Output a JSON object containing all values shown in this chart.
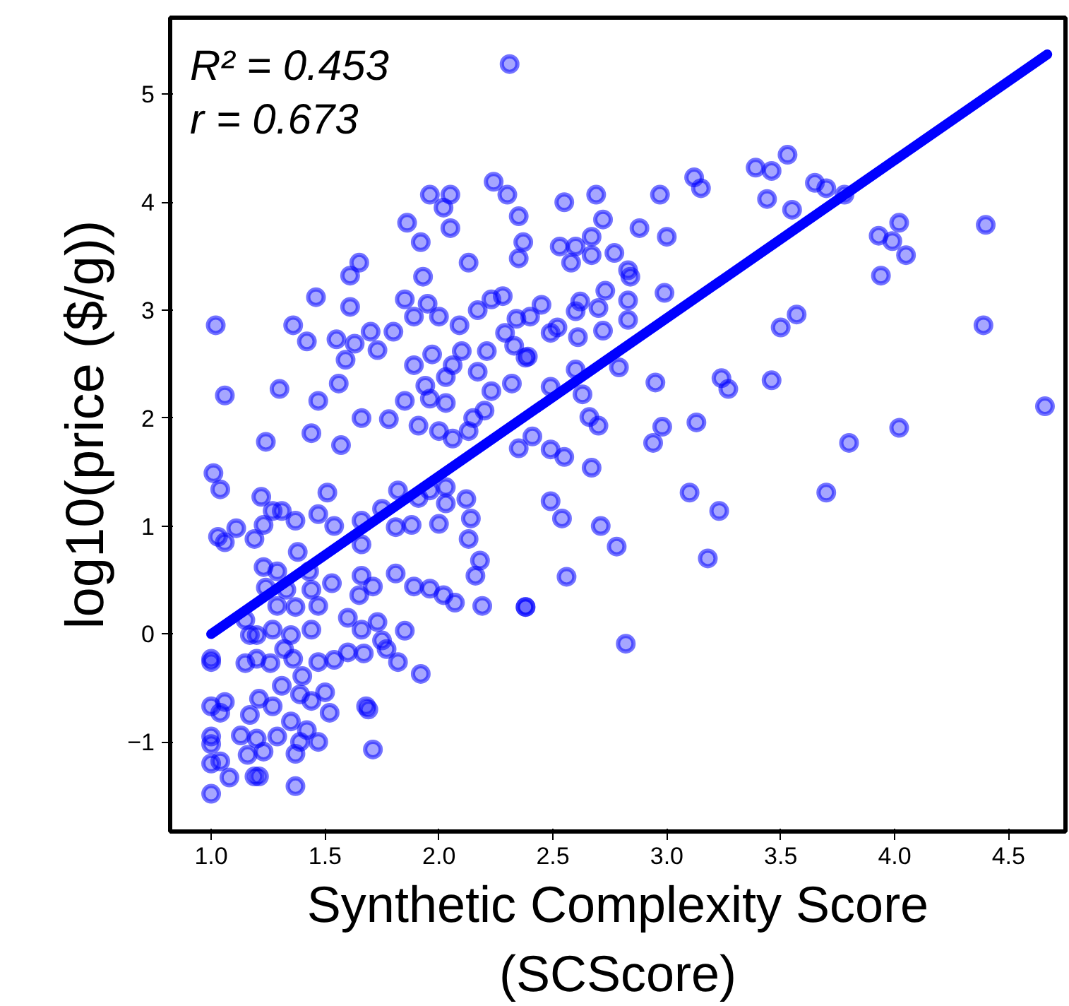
{
  "chart_data": {
    "type": "scatter",
    "xlabel": "Synthetic Complexity Score\n(SCScore)",
    "ylabel": "log10(price ($/g))",
    "annotations": [
      "R² = 0.453",
      "r = 0.673"
    ],
    "xlim": [
      0.82,
      4.75
    ],
    "ylim": [
      -1.83,
      5.71
    ],
    "xticks": [
      {
        "value": 1.0,
        "label": "1.0"
      },
      {
        "value": 1.5,
        "label": "1.5"
      },
      {
        "value": 2.0,
        "label": "2.0"
      },
      {
        "value": 2.5,
        "label": "2.5"
      },
      {
        "value": 3.0,
        "label": "3.0"
      },
      {
        "value": 3.5,
        "label": "3.5"
      },
      {
        "value": 4.0,
        "label": "4.0"
      },
      {
        "value": 4.5,
        "label": "4.5"
      }
    ],
    "yticks": [
      {
        "value": -1,
        "label": "−1"
      },
      0,
      1,
      2,
      3,
      4,
      5
    ],
    "grid": false,
    "series": [
      {
        "marker": "circle",
        "color": "#0000ff",
        "x": [
          2.31,
          1.02,
          1.06,
          1.24,
          1.3,
          1.36,
          1.46,
          1.42,
          1.47,
          1.44,
          1.56,
          1.59,
          1.61,
          1.61,
          1.65,
          1.55,
          1.63,
          1.66,
          1.57,
          1.7,
          1.73,
          1.8,
          1.78,
          1.85,
          1.86,
          1.92,
          1.93,
          1.96,
          2.05,
          2.02,
          2.05,
          1.85,
          1.89,
          1.95,
          2.0,
          1.89,
          1.97,
          2.03,
          2.06,
          1.94,
          1.96,
          2.03,
          1.91,
          2.0,
          2.06,
          2.13,
          2.24,
          2.3,
          2.35,
          2.37,
          2.35,
          2.17,
          2.23,
          2.28,
          2.34,
          2.09,
          2.1,
          2.17,
          2.21,
          2.29,
          2.33,
          2.38,
          2.23,
          2.32,
          2.15,
          2.13,
          2.2,
          2.35,
          1.01,
          1.04,
          1.03,
          1.06,
          1.11,
          1.19,
          1.22,
          1.23,
          1.27,
          1.31,
          1.37,
          1.38,
          1.47,
          1.51,
          1.54,
          1.66,
          1.66,
          1.75,
          1.82,
          1.81,
          1.88,
          1.91,
          1.96,
          2.03,
          2.03,
          2.0,
          2.12,
          2.14,
          2.13,
          2.18,
          2.16,
          2.19,
          2.38,
          1.23,
          1.29,
          1.24,
          1.33,
          1.43,
          1.44,
          1.53,
          1.47,
          1.37,
          1.29,
          1.66,
          1.65,
          1.71,
          1.81,
          1.89,
          1.96,
          2.02,
          2.07,
          1.15,
          1.17,
          1.2,
          1.27,
          1.35,
          1.44,
          1.6,
          1.66,
          1.73,
          1.85,
          1.0,
          1.0,
          1.15,
          1.2,
          1.26,
          1.32,
          1.36,
          1.4,
          1.47,
          1.54,
          1.6,
          1.67,
          1.75,
          1.77,
          1.82,
          1.92,
          1.0,
          1.06,
          1.04,
          1.17,
          1.21,
          1.27,
          1.31,
          1.35,
          1.39,
          1.44,
          1.5,
          1.52,
          1.68,
          1.69,
          1.0,
          1.0,
          1.13,
          1.2,
          1.29,
          1.39,
          1.47,
          1.42,
          1.16,
          1.23,
          1.37,
          1.71,
          1.0,
          1.04,
          1.08,
          1.19,
          1.21,
          1.37,
          1.0,
          2.55,
          2.69,
          2.72,
          2.67,
          2.53,
          2.6,
          2.67,
          2.58,
          2.77,
          2.83,
          2.84,
          2.88,
          2.97,
          3.0,
          3.12,
          3.15,
          3.39,
          3.46,
          3.53,
          3.44,
          3.55,
          3.65,
          3.7,
          3.78,
          3.93,
          3.99,
          4.02,
          4.05,
          3.94,
          4.4,
          4.39,
          4.66,
          2.73,
          2.62,
          2.6,
          2.7,
          2.83,
          2.83,
          2.72,
          2.99,
          2.45,
          2.4,
          2.49,
          2.52,
          2.61,
          2.39,
          2.79,
          2.6,
          2.49,
          2.63,
          2.95,
          3.24,
          3.27,
          3.46,
          3.5,
          3.57,
          2.66,
          2.7,
          2.98,
          3.13,
          2.41,
          2.94,
          3.8,
          4.02,
          2.49,
          2.55,
          2.67,
          3.1,
          3.23,
          3.7,
          2.49,
          2.54,
          2.71,
          2.78,
          3.18,
          2.56,
          2.38,
          2.82
        ],
        "values": [
          5.28,
          2.86,
          2.21,
          1.78,
          2.27,
          2.86,
          3.12,
          2.71,
          2.16,
          1.86,
          2.32,
          2.54,
          3.03,
          3.32,
          3.44,
          2.73,
          2.69,
          2.0,
          1.75,
          2.8,
          2.63,
          2.8,
          1.99,
          2.16,
          3.81,
          3.63,
          3.31,
          4.07,
          4.07,
          3.95,
          3.76,
          3.1,
          2.94,
          3.06,
          2.94,
          2.49,
          2.59,
          2.38,
          2.49,
          2.3,
          2.18,
          2.14,
          1.93,
          1.88,
          1.81,
          3.44,
          4.19,
          4.07,
          3.87,
          3.63,
          3.48,
          3.0,
          3.1,
          3.13,
          2.92,
          2.86,
          2.62,
          2.43,
          2.62,
          2.79,
          2.67,
          2.56,
          2.25,
          2.32,
          2.0,
          1.88,
          2.07,
          1.72,
          1.49,
          1.34,
          0.9,
          0.85,
          0.98,
          0.88,
          1.27,
          1.01,
          1.14,
          1.14,
          1.05,
          0.76,
          1.11,
          1.31,
          1.0,
          1.05,
          0.83,
          1.16,
          1.33,
          0.99,
          1.01,
          1.26,
          1.33,
          1.36,
          1.21,
          1.02,
          1.25,
          1.07,
          0.88,
          0.68,
          0.54,
          0.26,
          0.25,
          0.62,
          0.58,
          0.43,
          0.41,
          0.58,
          0.41,
          0.47,
          0.26,
          0.25,
          0.26,
          0.54,
          0.36,
          0.44,
          0.56,
          0.44,
          0.42,
          0.36,
          0.29,
          0.13,
          -0.01,
          -0.01,
          0.04,
          -0.01,
          0.04,
          0.15,
          0.04,
          0.11,
          0.03,
          -0.23,
          -0.26,
          -0.27,
          -0.23,
          -0.27,
          -0.14,
          -0.23,
          -0.39,
          -0.26,
          -0.24,
          -0.17,
          -0.18,
          -0.06,
          -0.14,
          -0.26,
          -0.37,
          -0.67,
          -0.63,
          -0.73,
          -0.75,
          -0.6,
          -0.67,
          -0.48,
          -0.81,
          -0.56,
          -0.62,
          -0.54,
          -0.73,
          -0.67,
          -0.7,
          -0.95,
          -1.02,
          -0.94,
          -0.97,
          -0.95,
          -1.0,
          -1.0,
          -0.89,
          -1.12,
          -1.09,
          -1.11,
          -1.07,
          -1.2,
          -1.18,
          -1.33,
          -1.32,
          -1.32,
          -1.41,
          -1.48,
          4.0,
          4.07,
          3.84,
          3.68,
          3.59,
          3.59,
          3.51,
          3.44,
          3.53,
          3.37,
          3.31,
          3.76,
          4.07,
          3.68,
          4.23,
          4.13,
          4.32,
          4.29,
          4.44,
          4.03,
          3.93,
          4.18,
          4.13,
          4.07,
          3.69,
          3.64,
          3.81,
          3.51,
          3.32,
          3.79,
          2.86,
          2.11,
          3.18,
          3.08,
          2.99,
          3.02,
          3.09,
          2.91,
          2.81,
          3.16,
          3.05,
          2.94,
          2.79,
          2.84,
          2.75,
          2.57,
          2.47,
          2.45,
          2.29,
          2.22,
          2.33,
          2.37,
          2.27,
          2.35,
          2.84,
          2.96,
          2.01,
          1.93,
          1.92,
          1.96,
          1.83,
          1.77,
          1.77,
          1.91,
          1.71,
          1.64,
          1.54,
          1.31,
          1.14,
          1.31,
          1.23,
          1.07,
          1.0,
          0.81,
          0.7,
          0.53,
          0.25,
          -0.09
        ]
      },
      {
        "type": "line",
        "color": "#0000ff",
        "x": [
          1.0,
          4.67
        ],
        "values": [
          0.0,
          5.37
        ]
      }
    ]
  }
}
